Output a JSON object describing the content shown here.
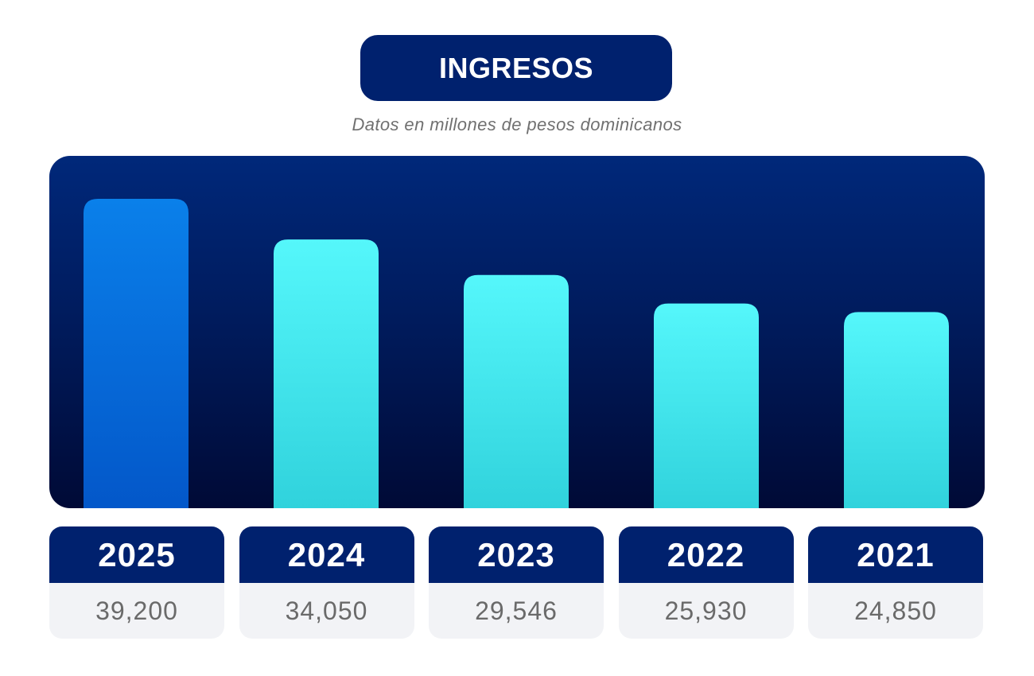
{
  "header": {
    "title": "INGRESOS",
    "subtitle": "Datos en millones de pesos dominicanos"
  },
  "colors": {
    "highlight_top": "#0a80ea",
    "highlight_bottom": "#0357c9",
    "bar_top": "#55f7fb",
    "bar_bottom": "#30d2dc",
    "navy": "#00216e"
  },
  "chart_data": {
    "type": "bar",
    "categories": [
      "2025",
      "2024",
      "2023",
      "2022",
      "2021"
    ],
    "values": [
      39200,
      34050,
      29546,
      25930,
      24850
    ],
    "value_labels": [
      "39,200",
      "34,050",
      "29,546",
      "25,930",
      "24,850"
    ],
    "highlighted_category": "2025",
    "title": "INGRESOS",
    "subtitle": "Datos en millones de pesos dominicanos",
    "xlabel": "",
    "ylabel": "",
    "grid": false,
    "legend": "none"
  }
}
